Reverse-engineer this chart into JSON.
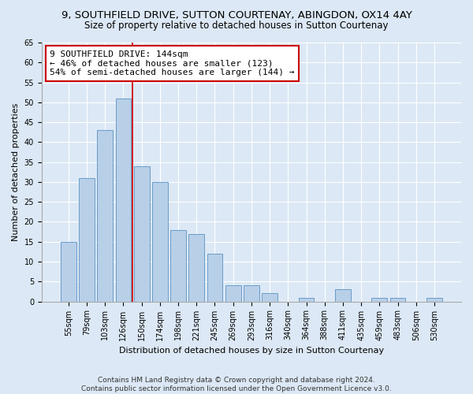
{
  "title": "9, SOUTHFIELD DRIVE, SUTTON COURTENAY, ABINGDON, OX14 4AY",
  "subtitle": "Size of property relative to detached houses in Sutton Courtenay",
  "xlabel": "Distribution of detached houses by size in Sutton Courtenay",
  "ylabel": "Number of detached properties",
  "categories": [
    "55sqm",
    "79sqm",
    "103sqm",
    "126sqm",
    "150sqm",
    "174sqm",
    "198sqm",
    "221sqm",
    "245sqm",
    "269sqm",
    "293sqm",
    "316sqm",
    "340sqm",
    "364sqm",
    "388sqm",
    "411sqm",
    "435sqm",
    "459sqm",
    "483sqm",
    "506sqm",
    "530sqm"
  ],
  "values": [
    15,
    31,
    43,
    51,
    34,
    30,
    18,
    17,
    12,
    4,
    4,
    2,
    0,
    1,
    0,
    3,
    0,
    1,
    1,
    0,
    1
  ],
  "bar_color": "#b8cfe8",
  "bar_edge_color": "#6a9dc8",
  "vline_x_index": 3.5,
  "vline_color": "#cc0000",
  "annotation_text": "9 SOUTHFIELD DRIVE: 144sqm\n← 46% of detached houses are smaller (123)\n54% of semi-detached houses are larger (144) →",
  "annotation_box_color": "white",
  "annotation_box_edgecolor": "#cc0000",
  "ylim": [
    0,
    65
  ],
  "yticks": [
    0,
    5,
    10,
    15,
    20,
    25,
    30,
    35,
    40,
    45,
    50,
    55,
    60,
    65
  ],
  "footer": "Contains HM Land Registry data © Crown copyright and database right 2024.\nContains public sector information licensed under the Open Government Licence v3.0.",
  "background_color": "#dce8f5",
  "plot_background": "#dce8f5",
  "grid_color": "white",
  "title_fontsize": 9.5,
  "subtitle_fontsize": 8.5,
  "axis_label_fontsize": 8,
  "tick_fontsize": 7,
  "annotation_fontsize": 8,
  "footer_fontsize": 6.5
}
